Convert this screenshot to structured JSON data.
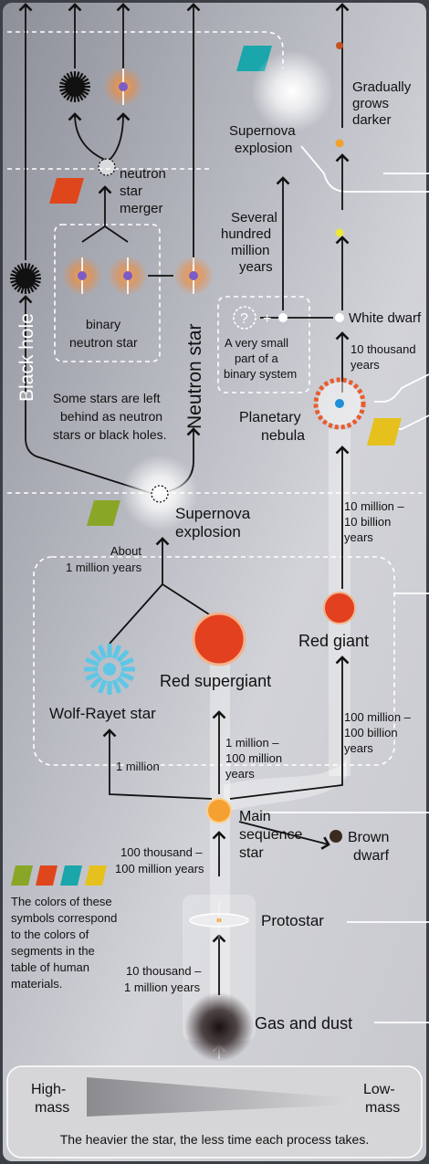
{
  "labels": {
    "gradually_grows_darker": [
      "Gradually",
      "grows",
      "darker"
    ],
    "supernova_top": [
      "Supernova",
      "explosion"
    ],
    "neutron_star_merger": [
      "neutron",
      "star",
      "merger"
    ],
    "several_hundred_million_years": [
      "Several",
      "hundred",
      "million",
      "years"
    ],
    "black_hole": "Black hole",
    "neutron_star": "Neutron star",
    "binary_neutron_star": [
      "binary",
      "neutron star"
    ],
    "question_mark": "?",
    "plus": "+",
    "white_dwarf": "White dwarf",
    "binary_system_note": [
      "A very small",
      "part of a",
      "binary system"
    ],
    "ten_thousand_years": [
      "10 thousand",
      "years"
    ],
    "planetary_nebula": [
      "Planetary",
      "nebula"
    ],
    "left_behind_note": [
      "Some stars are left",
      "behind as neutron",
      "stars or black holes."
    ],
    "supernova_main": [
      "Supernova",
      "explosion"
    ],
    "about_1_million_years": [
      "About",
      "1 million years"
    ],
    "ten_million_ten_billion": [
      "10 million –",
      "10 billion",
      "years"
    ],
    "red_giant": "Red giant",
    "red_supergiant": "Red supergiant",
    "wolf_rayet_star": "Wolf-Rayet star",
    "one_million_100_million": [
      "1 million –",
      "100 million",
      "years"
    ],
    "one_million": "1 million",
    "hundred_million_100_billion": [
      "100 million –",
      "100 billion",
      "years"
    ],
    "main_sequence_star": [
      "Main",
      "sequence",
      "star"
    ],
    "brown_dwarf": [
      "Brown",
      "dwarf"
    ],
    "hundred_thousand_100_million": [
      "100 thousand –",
      "100 million years"
    ],
    "color_legend_note": [
      "The colors of these",
      "symbols correspond",
      "to the colors of",
      "segments in the",
      "table of human",
      "materials."
    ],
    "protostar": "Protostar",
    "ten_thousand_1_million": [
      "10 thousand –",
      "1 million years"
    ],
    "gas_and_dust": "Gas and dust",
    "high_mass": [
      "High-",
      "mass"
    ],
    "low_mass": [
      "Low-",
      "mass"
    ],
    "bottom_caption": "The heavier the star, the less time each process takes."
  },
  "colors": {
    "green": "#8aa627",
    "orange_red": "#e0461c",
    "teal": "#1aa6aa",
    "yellow": "#e6c11d",
    "sun_orange": "#f4a132",
    "red_giant": "#e2401f",
    "wolf_rayet": "#5fc6e6",
    "brown_dwarf": "#3b2b1f"
  },
  "legend_swatches": [
    "green",
    "orange_red",
    "teal",
    "yellow"
  ]
}
